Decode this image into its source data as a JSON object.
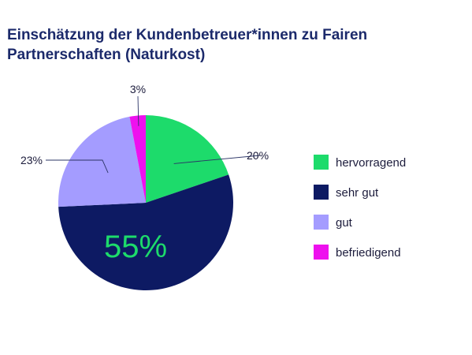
{
  "chart_data": {
    "type": "pie",
    "title": "Einschätzung der Kundenbetreuer*innen zu Fairen Partnerschaften (Naturkost)",
    "categories": [
      "hervorragend",
      "sehr gut",
      "gut",
      "befriedigend"
    ],
    "values": [
      20,
      55,
      23,
      3
    ],
    "labels": [
      "20%",
      "55%",
      "23%",
      "3%"
    ],
    "colors": [
      "#1ddb6b",
      "#0d1a63",
      "#a49cff",
      "#ee11ee"
    ],
    "legend_position": "right"
  }
}
